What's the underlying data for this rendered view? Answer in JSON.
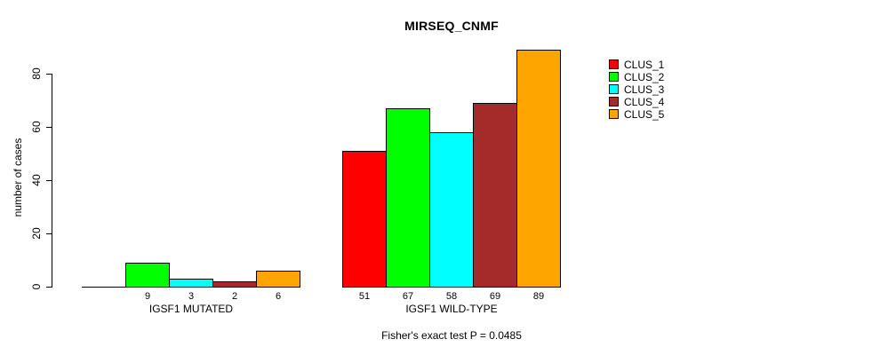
{
  "chart_data": {
    "type": "bar",
    "title": "MIRSEQ_CNMF",
    "ylabel": "number of cases",
    "xlabel": "",
    "subtitle": "Fisher's exact test P = 0.0485",
    "ylim": [
      0,
      89
    ],
    "yticks": [
      0,
      20,
      40,
      60,
      80
    ],
    "grid": false,
    "legend_position": "right",
    "categories": [
      "IGSF1 MUTATED",
      "IGSF1 WILD-TYPE"
    ],
    "series": [
      {
        "name": "CLUS_1",
        "color": "#FF0000",
        "values": [
          0,
          51
        ]
      },
      {
        "name": "CLUS_2",
        "color": "#00FF00",
        "values": [
          9,
          67
        ]
      },
      {
        "name": "CLUS_3",
        "color": "#00FFFF",
        "values": [
          3,
          58
        ]
      },
      {
        "name": "CLUS_4",
        "color": "#A52A2A",
        "values": [
          2,
          69
        ]
      },
      {
        "name": "CLUS_5",
        "color": "#FFA500",
        "values": [
          6,
          89
        ]
      }
    ],
    "bar_labels": [
      [
        "",
        "9",
        "3",
        "2",
        "6"
      ],
      [
        "51",
        "67",
        "58",
        "69",
        "89"
      ]
    ]
  }
}
